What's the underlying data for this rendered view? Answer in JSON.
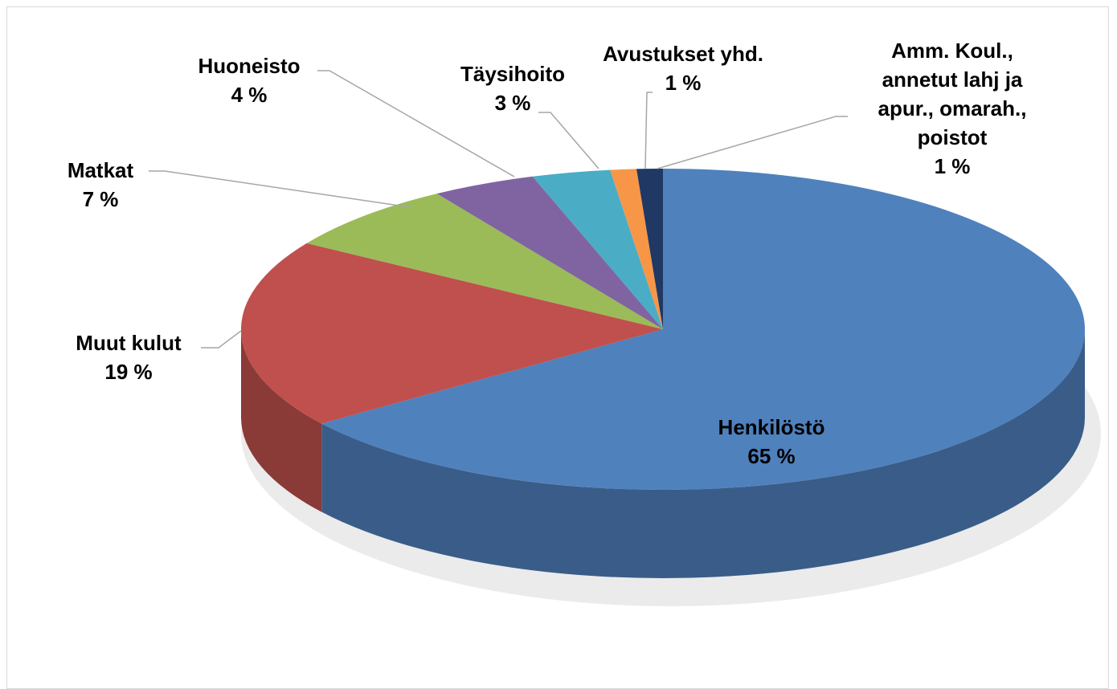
{
  "chart_data": {
    "type": "pie3d",
    "categories": [
      "Henkilöstö",
      "Muut kulut",
      "Matkat",
      "Huoneisto",
      "Täysihoito",
      "Avustukset yhd.",
      "Amm. Koul., annetut lahj ja apur., omarah., poistot"
    ],
    "values": [
      65,
      19,
      7,
      4,
      3,
      1,
      1
    ],
    "value_labels": [
      "65 %",
      "19 %",
      "7 %",
      "4 %",
      "3 %",
      "1 %",
      "1 %"
    ],
    "colors": [
      "#4f81bd",
      "#c0504d",
      "#9bbb59",
      "#8064a2",
      "#4bacc6",
      "#f79646",
      "#1f3864"
    ]
  }
}
